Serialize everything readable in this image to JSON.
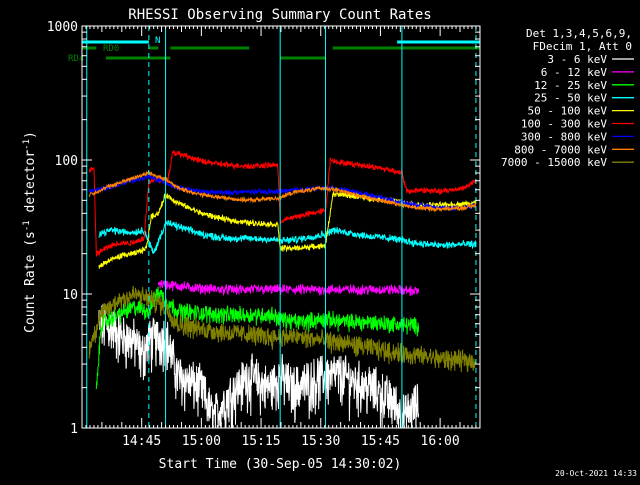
{
  "chart_data": {
    "type": "line",
    "title": "RHESSI Observing Summary Count Rates",
    "xlabel": "Start Time (30-Sep-05 14:30:02)",
    "ylabel_prefix": "Count Rate (s",
    "ylabel_mid": " detector",
    "ylabel_suffix": ")",
    "ylabel_sup": "-1",
    "yscale": "log",
    "ylim": [
      1,
      1000
    ],
    "xlim": [
      14.5,
      16.167
    ],
    "y_ticks": [
      {
        "v": 1,
        "label": "1"
      },
      {
        "v": 10,
        "label": "10"
      },
      {
        "v": 100,
        "label": "100"
      },
      {
        "v": 1000,
        "label": "1000"
      }
    ],
    "x_ticks": [
      {
        "t": 14.75,
        "label": "14:45"
      },
      {
        "t": 15.0,
        "label": "15:00"
      },
      {
        "t": 15.25,
        "label": "15:15"
      },
      {
        "t": 15.5,
        "label": "15:30"
      },
      {
        "t": 15.75,
        "label": "15:45"
      },
      {
        "t": 16.0,
        "label": "16:00"
      }
    ],
    "legend_header": [
      "Det 1,3,4,5,6,9,",
      "FDecim 1, Att 0"
    ],
    "legend_position": "right",
    "timestamp": "20-Oct-2021 14:33",
    "bars": [
      {
        "label": "N",
        "color": "#00ffff",
        "segments": [
          [
            14.5,
            14.78
          ],
          [
            15.82,
            16.167
          ]
        ],
        "level": 1
      },
      {
        "label": "RD0",
        "color": "#008000",
        "segments": [
          [
            14.5,
            14.56
          ],
          [
            14.78,
            14.82
          ],
          [
            14.87,
            15.2
          ],
          [
            15.55,
            16.167
          ]
        ],
        "level": 2
      },
      {
        "label": "RD4",
        "color": "#008000",
        "segments": [
          [
            14.6,
            14.87
          ],
          [
            15.33,
            15.52
          ]
        ],
        "level": 3
      }
    ],
    "vlines": [
      {
        "t": 14.52,
        "color": "#00ffff",
        "style": "solid"
      },
      {
        "t": 14.85,
        "color": "#00ffff",
        "style": "solid"
      },
      {
        "t": 15.33,
        "color": "#00ffff",
        "style": "solid"
      },
      {
        "t": 15.52,
        "color": "#00ffff",
        "style": "solid"
      },
      {
        "t": 15.84,
        "color": "#00ffff",
        "style": "solid"
      },
      {
        "t": 14.78,
        "color": "#00ffff",
        "style": "dashed"
      },
      {
        "t": 16.15,
        "color": "#00ffff",
        "style": "dashed"
      }
    ],
    "series": [
      {
        "name": "3 - 6 keV",
        "color": "#ffffff",
        "points": [
          [
            14.57,
            6.0
          ],
          [
            14.62,
            5.8
          ],
          [
            14.67,
            4.8
          ],
          [
            14.72,
            4.5
          ],
          [
            14.75,
            3.5
          ],
          [
            14.78,
            4.5
          ],
          [
            14.85,
            5.0
          ],
          [
            14.9,
            2.5
          ],
          [
            15.0,
            2.0
          ],
          [
            15.05,
            1.2
          ],
          [
            15.12,
            1.8
          ],
          [
            15.2,
            2.5
          ],
          [
            15.28,
            2.0
          ],
          [
            15.33,
            2.5
          ],
          [
            15.38,
            2.0
          ],
          [
            15.45,
            2.2
          ],
          [
            15.52,
            2.5
          ],
          [
            15.58,
            2.5
          ],
          [
            15.65,
            2.2
          ],
          [
            15.72,
            2.0
          ],
          [
            15.8,
            1.6
          ],
          [
            15.85,
            1.2
          ],
          [
            15.9,
            1.5
          ]
        ],
        "noise": 0.35,
        "segments": [
          [
            14.57,
            15.91
          ]
        ]
      },
      {
        "name": "6 - 12 keV",
        "color": "#ff00ff",
        "points": [
          [
            14.82,
            12.0
          ],
          [
            14.9,
            11.5
          ],
          [
            15.0,
            11.0
          ],
          [
            15.1,
            10.8
          ],
          [
            15.2,
            10.8
          ],
          [
            15.3,
            10.8
          ],
          [
            15.4,
            10.8
          ],
          [
            15.5,
            10.8
          ],
          [
            15.6,
            10.8
          ],
          [
            15.7,
            10.8
          ],
          [
            15.8,
            10.8
          ],
          [
            15.91,
            10.5
          ]
        ],
        "noise": 0.07,
        "segments": [
          [
            14.82,
            15.91
          ]
        ]
      },
      {
        "name": "12 - 25 keV",
        "color": "#00ff00",
        "points": [
          [
            14.55,
            1.0
          ],
          [
            14.58,
            6.0
          ],
          [
            14.65,
            7.0
          ],
          [
            14.72,
            8.0
          ],
          [
            14.78,
            7.5
          ],
          [
            14.82,
            10.5
          ],
          [
            14.85,
            9.0
          ],
          [
            14.9,
            7.5
          ],
          [
            15.0,
            7.2
          ],
          [
            15.1,
            7.0
          ],
          [
            15.2,
            7.0
          ],
          [
            15.3,
            7.0
          ],
          [
            15.33,
            6.5
          ],
          [
            15.4,
            6.2
          ],
          [
            15.52,
            6.5
          ],
          [
            15.6,
            6.2
          ],
          [
            15.7,
            6.2
          ],
          [
            15.8,
            6.0
          ],
          [
            15.91,
            5.8
          ]
        ],
        "noise": 0.12,
        "segments": [
          [
            14.56,
            15.91
          ]
        ]
      },
      {
        "name": "25 - 50 keV",
        "color": "#00ffff",
        "points": [
          [
            14.57,
            28.0
          ],
          [
            14.62,
            30.0
          ],
          [
            14.68,
            29.0
          ],
          [
            14.72,
            29.0
          ],
          [
            14.76,
            30.0
          ],
          [
            14.8,
            20.0
          ],
          [
            14.85,
            34.0
          ],
          [
            14.9,
            32.0
          ],
          [
            15.0,
            28.0
          ],
          [
            15.1,
            26.0
          ],
          [
            15.2,
            26.0
          ],
          [
            15.3,
            25.5
          ],
          [
            15.33,
            25.0
          ],
          [
            15.4,
            25.5
          ],
          [
            15.52,
            28.0
          ],
          [
            15.55,
            30.0
          ],
          [
            15.6,
            29.0
          ],
          [
            15.7,
            27.0
          ],
          [
            15.8,
            26.0
          ],
          [
            15.9,
            24.0
          ],
          [
            16.0,
            23.0
          ],
          [
            16.1,
            23.5
          ],
          [
            16.15,
            23.5
          ]
        ],
        "noise": 0.05,
        "segments": [
          [
            14.57,
            16.15
          ]
        ]
      },
      {
        "name": "50 - 100 keV",
        "color": "#ffff00",
        "points": [
          [
            14.57,
            16.0
          ],
          [
            14.62,
            18.0
          ],
          [
            14.67,
            19.5
          ],
          [
            14.72,
            20.0
          ],
          [
            14.77,
            22.0
          ],
          [
            14.79,
            38.0
          ],
          [
            14.82,
            40.0
          ],
          [
            14.85,
            55.0
          ],
          [
            14.9,
            48.0
          ],
          [
            15.0,
            40.0
          ],
          [
            15.1,
            36.0
          ],
          [
            15.2,
            34.0
          ],
          [
            15.32,
            33.0
          ],
          [
            15.33,
            22.0
          ],
          [
            15.4,
            22.0
          ],
          [
            15.52,
            23.0
          ],
          [
            15.55,
            55.0
          ],
          [
            15.6,
            55.0
          ],
          [
            15.7,
            52.0
          ],
          [
            15.8,
            50.0
          ],
          [
            15.9,
            46.0
          ],
          [
            16.0,
            46.0
          ],
          [
            16.1,
            47.0
          ],
          [
            16.15,
            48.0
          ]
        ],
        "noise": 0.04,
        "segments": [
          [
            14.57,
            16.15
          ]
        ]
      },
      {
        "name": "100 - 300 keV",
        "color": "#ff0000",
        "points": [
          [
            14.53,
            85.0
          ],
          [
            14.55,
            85.0
          ],
          [
            14.56,
            20.0
          ],
          [
            14.6,
            22.0
          ],
          [
            14.65,
            24.0
          ],
          [
            14.7,
            24.0
          ],
          [
            14.76,
            26.0
          ],
          [
            14.78,
            68.0
          ],
          [
            14.8,
            72.0
          ],
          [
            14.84,
            70.0
          ],
          [
            14.86,
            72.0
          ],
          [
            14.88,
            115.0
          ],
          [
            14.95,
            105.0
          ],
          [
            15.0,
            98.0
          ],
          [
            15.1,
            92.0
          ],
          [
            15.2,
            90.0
          ],
          [
            15.32,
            92.0
          ],
          [
            15.33,
            35.0
          ],
          [
            15.4,
            38.0
          ],
          [
            15.52,
            42.0
          ],
          [
            15.54,
            100.0
          ],
          [
            15.6,
            95.0
          ],
          [
            15.7,
            90.0
          ],
          [
            15.8,
            84.0
          ],
          [
            15.84,
            80.0
          ],
          [
            15.86,
            58.0
          ],
          [
            15.92,
            60.0
          ],
          [
            16.0,
            58.0
          ],
          [
            16.1,
            62.0
          ],
          [
            16.15,
            70.0
          ]
        ],
        "noise": 0.04,
        "segments": [
          [
            14.53,
            16.15
          ]
        ]
      },
      {
        "name": "300 - 800 keV",
        "color": "#0000ff",
        "points": [
          [
            14.53,
            58.0
          ],
          [
            14.6,
            62.0
          ],
          [
            14.7,
            70.0
          ],
          [
            14.78,
            75.0
          ],
          [
            14.85,
            68.0
          ],
          [
            14.9,
            62.0
          ],
          [
            15.0,
            58.0
          ],
          [
            15.1,
            57.0
          ],
          [
            15.2,
            58.0
          ],
          [
            15.32,
            58.0
          ],
          [
            15.4,
            60.0
          ],
          [
            15.52,
            62.0
          ],
          [
            15.6,
            60.0
          ],
          [
            15.7,
            55.0
          ],
          [
            15.8,
            50.0
          ],
          [
            15.9,
            46.0
          ],
          [
            16.0,
            44.0
          ],
          [
            16.1,
            44.0
          ],
          [
            16.15,
            46.0
          ]
        ],
        "noise": 0.035,
        "segments": [
          [
            14.53,
            16.15
          ]
        ]
      },
      {
        "name": "800 - 7000 keV",
        "color": "#ff8000",
        "points": [
          [
            14.53,
            55.0
          ],
          [
            14.6,
            62.0
          ],
          [
            14.7,
            72.0
          ],
          [
            14.78,
            80.0
          ],
          [
            14.85,
            72.0
          ],
          [
            14.9,
            62.0
          ],
          [
            15.0,
            55.0
          ],
          [
            15.1,
            52.0
          ],
          [
            15.2,
            50.0
          ],
          [
            15.32,
            52.0
          ],
          [
            15.4,
            58.0
          ],
          [
            15.52,
            62.0
          ],
          [
            15.6,
            58.0
          ],
          [
            15.7,
            52.0
          ],
          [
            15.8,
            48.0
          ],
          [
            15.9,
            44.0
          ],
          [
            16.0,
            43.0
          ],
          [
            16.1,
            44.0
          ],
          [
            16.15,
            46.0
          ]
        ],
        "noise": 0.03,
        "segments": [
          [
            14.53,
            16.15
          ]
        ]
      },
      {
        "name": "7000 - 15000 keV",
        "color": "#808000",
        "points": [
          [
            14.53,
            4.0
          ],
          [
            14.58,
            7.0
          ],
          [
            14.65,
            9.0
          ],
          [
            14.72,
            10.0
          ],
          [
            14.8,
            9.0
          ],
          [
            14.85,
            8.0
          ],
          [
            14.9,
            6.0
          ],
          [
            15.0,
            5.5
          ],
          [
            15.1,
            5.2
          ],
          [
            15.2,
            5.0
          ],
          [
            15.3,
            4.8
          ],
          [
            15.4,
            4.8
          ],
          [
            15.52,
            4.5
          ],
          [
            15.6,
            4.3
          ],
          [
            15.7,
            4.0
          ],
          [
            15.8,
            3.7
          ],
          [
            15.9,
            3.5
          ],
          [
            16.0,
            3.3
          ],
          [
            16.1,
            3.2
          ],
          [
            16.15,
            3.2
          ]
        ],
        "noise": 0.14,
        "segments": [
          [
            14.53,
            16.15
          ]
        ]
      }
    ]
  }
}
